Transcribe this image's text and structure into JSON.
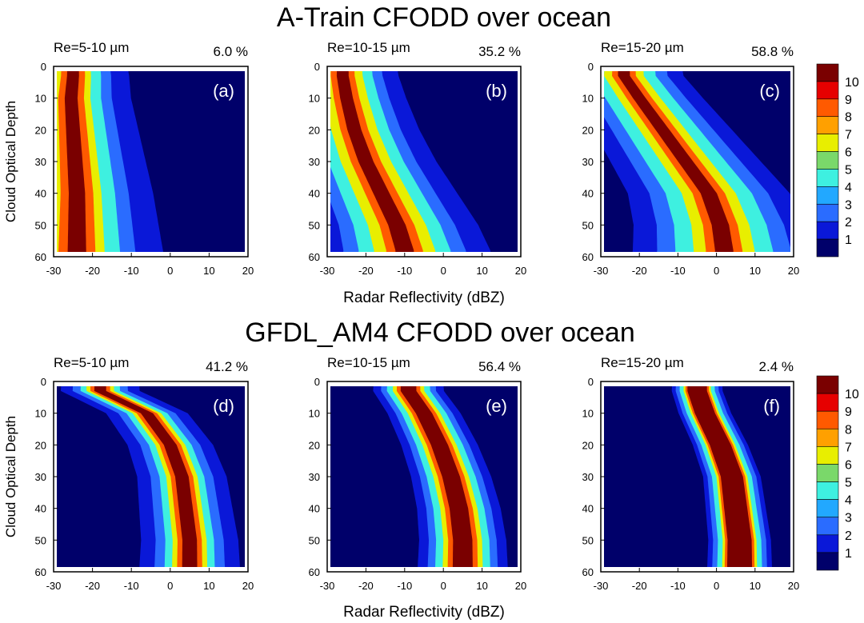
{
  "figure": {
    "row_titles": [
      "A-Train CFODD over ocean",
      "GFDL_AM4 CFODD over ocean"
    ],
    "xlabel": "Radar Reflectivity (dBZ)",
    "ylabel": "Cloud Optical Depth"
  },
  "colorbar": {
    "labels": [
      "10",
      "9",
      "8",
      "7",
      "6",
      "5",
      "4",
      "3",
      "2",
      "1"
    ],
    "colors": [
      "#7a0000",
      "#e60000",
      "#ff5a00",
      "#ffa000",
      "#e8ee00",
      "#7ad86a",
      "#3ef0e0",
      "#22a8ff",
      "#2a6cff",
      "#0a18d8",
      "#00006a"
    ]
  },
  "chart_data": [
    {
      "type": "heatmap",
      "panel_label": "(a)",
      "title": "Re=5-10 µm",
      "percent": "6.0 %",
      "xlim": [
        -30,
        20
      ],
      "ylim": [
        60,
        0
      ],
      "xticks": [
        "-30",
        "-20",
        "-10",
        "0",
        "10",
        "20"
      ],
      "yticks": [
        "0",
        "10",
        "20",
        "30",
        "40",
        "50",
        "60"
      ],
      "ridge": [
        [
          -25,
          3
        ],
        [
          -25.5,
          10
        ],
        [
          -25,
          20
        ],
        [
          -24.5,
          30
        ],
        [
          -24,
          40
        ],
        [
          -24,
          50
        ],
        [
          -24,
          58
        ]
      ],
      "widths": [
        1.5,
        3,
        4.5,
        7,
        9.5,
        14
      ],
      "pattern": "diffuse"
    },
    {
      "type": "heatmap",
      "panel_label": "(b)",
      "title": "Re=10-15 µm",
      "percent": "35.2 %",
      "xlim": [
        -30,
        20
      ],
      "ylim": [
        60,
        0
      ],
      "xticks": [
        "-30",
        "-20",
        "-10",
        "0",
        "10",
        "20"
      ],
      "yticks": [
        "0",
        "10",
        "20",
        "30",
        "40",
        "50",
        "60"
      ],
      "ridge": [
        [
          -26,
          3
        ],
        [
          -25,
          10
        ],
        [
          -23,
          20
        ],
        [
          -20,
          30
        ],
        [
          -16,
          40
        ],
        [
          -12,
          50
        ],
        [
          -10,
          58
        ]
      ],
      "widths": [
        1.5,
        3,
        5,
        7.5,
        10,
        14
      ],
      "pattern": "diffuse"
    },
    {
      "type": "heatmap",
      "panel_label": "(c)",
      "title": "Re=15-20 µm",
      "percent": "58.8 %",
      "xlim": [
        -30,
        20
      ],
      "ylim": [
        60,
        0
      ],
      "xticks": [
        "-30",
        "-20",
        "-10",
        "0",
        "10",
        "20"
      ],
      "yticks": [
        "0",
        "10",
        "20",
        "30",
        "40",
        "50",
        "60"
      ],
      "ridge": [
        [
          -24,
          3
        ],
        [
          -20,
          10
        ],
        [
          -14,
          20
        ],
        [
          -8,
          30
        ],
        [
          -2,
          40
        ],
        [
          1,
          50
        ],
        [
          2,
          58
        ]
      ],
      "widths": [
        1.5,
        3,
        5,
        8,
        11,
        15
      ],
      "pattern": "diffuse"
    },
    {
      "type": "heatmap",
      "panel_label": "(d)",
      "title": "Re=5-10 µm",
      "percent": "41.2 %",
      "xlim": [
        -30,
        20
      ],
      "ylim": [
        60,
        0
      ],
      "xticks": [
        "-30",
        "-20",
        "-10",
        "0",
        "10",
        "20"
      ],
      "yticks": [
        "0",
        "10",
        "20",
        "30",
        "40",
        "50",
        "60"
      ],
      "ridge": [
        [
          -18,
          3
        ],
        [
          -6,
          10
        ],
        [
          0,
          20
        ],
        [
          3,
          30
        ],
        [
          4,
          40
        ],
        [
          5,
          50
        ],
        [
          5,
          58
        ]
      ],
      "widths": [
        1.5,
        2.5,
        3.5,
        5,
        7,
        10
      ],
      "pattern": "narrow"
    },
    {
      "type": "heatmap",
      "panel_label": "(e)",
      "title": "Re=10-15 µm",
      "percent": "56.4 %",
      "xlim": [
        -30,
        20
      ],
      "ylim": [
        60,
        0
      ],
      "xticks": [
        "-30",
        "-20",
        "-10",
        "0",
        "10",
        "20"
      ],
      "yticks": [
        "0",
        "10",
        "20",
        "30",
        "40",
        "50",
        "60"
      ],
      "ridge": [
        [
          -9,
          3
        ],
        [
          -5,
          10
        ],
        [
          -1,
          20
        ],
        [
          2,
          30
        ],
        [
          4,
          40
        ],
        [
          5,
          50
        ],
        [
          5,
          58
        ]
      ],
      "widths": [
        2,
        3,
        4,
        5.5,
        7,
        9
      ],
      "pattern": "narrow"
    },
    {
      "type": "heatmap",
      "panel_label": "(f)",
      "title": "Re=15-20 µm",
      "percent": "2.4 %",
      "xlim": [
        -30,
        20
      ],
      "ylim": [
        60,
        0
      ],
      "xticks": [
        "-30",
        "-20",
        "-10",
        "0",
        "10",
        "20"
      ],
      "yticks": [
        "0",
        "10",
        "20",
        "30",
        "40",
        "50",
        "60"
      ],
      "ridge": [
        [
          -5,
          3
        ],
        [
          -3,
          10
        ],
        [
          1,
          20
        ],
        [
          4,
          30
        ],
        [
          5,
          40
        ],
        [
          6,
          50
        ],
        [
          6,
          58
        ]
      ],
      "widths": [
        2.5,
        3,
        3.5,
        4.5,
        5.5,
        6.5
      ],
      "pattern": "narrow"
    }
  ]
}
